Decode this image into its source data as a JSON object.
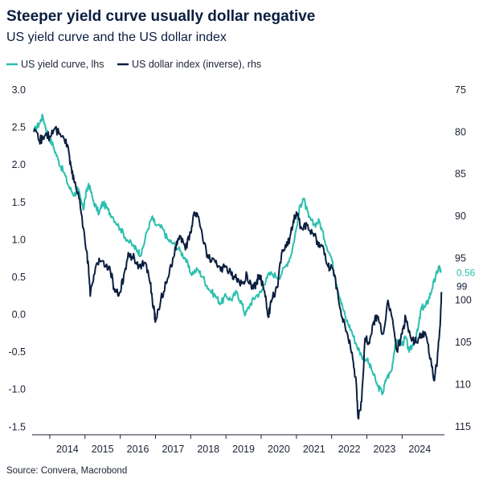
{
  "chart_data": {
    "type": "line",
    "title": "Steeper yield curve usually dollar negative",
    "subtitle": "US yield curve and the US dollar index",
    "source": "Source: Convera, Macrobond",
    "x_ticks": [
      "2014",
      "2015",
      "2016",
      "2017",
      "2018",
      "2019",
      "2020",
      "2021",
      "2022",
      "2023",
      "2024"
    ],
    "xlim": [
      2013.5,
      2025.2
    ],
    "grid": false,
    "legend_position": "top-left",
    "axes": {
      "left": {
        "ylim": [
          -1.55,
          3.0
        ],
        "ticks": [
          "3.0",
          "2.5",
          "2.0",
          "1.5",
          "1.0",
          "0.5",
          "0.0",
          "-0.5",
          "-1.0",
          "-1.5"
        ]
      },
      "right": {
        "inverted": true,
        "ylim": [
          75,
          115.5
        ],
        "ticks": [
          "75",
          "80",
          "85",
          "90",
          "95",
          "100",
          "105",
          "110",
          "115"
        ]
      }
    },
    "series": [
      {
        "name": "US yield curve, lhs",
        "axis": "left",
        "color": "#2bbfae",
        "end_label": "0.56",
        "points": [
          [
            2013.55,
            2.45
          ],
          [
            2013.7,
            2.55
          ],
          [
            2013.8,
            2.65
          ],
          [
            2013.95,
            2.4
          ],
          [
            2014.1,
            2.25
          ],
          [
            2014.25,
            2.05
          ],
          [
            2014.4,
            1.9
          ],
          [
            2014.55,
            1.7
          ],
          [
            2014.7,
            1.6
          ],
          [
            2014.8,
            1.68
          ],
          [
            2014.95,
            1.4
          ],
          [
            2015.0,
            1.55
          ],
          [
            2015.1,
            1.75
          ],
          [
            2015.25,
            1.5
          ],
          [
            2015.4,
            1.35
          ],
          [
            2015.5,
            1.5
          ],
          [
            2015.65,
            1.4
          ],
          [
            2015.8,
            1.3
          ],
          [
            2016.0,
            1.15
          ],
          [
            2016.2,
            1.0
          ],
          [
            2016.4,
            0.9
          ],
          [
            2016.5,
            0.85
          ],
          [
            2016.6,
            0.8
          ],
          [
            2016.75,
            1.1
          ],
          [
            2016.9,
            1.3
          ],
          [
            2017.0,
            1.2
          ],
          [
            2017.2,
            1.15
          ],
          [
            2017.35,
            1.0
          ],
          [
            2017.5,
            0.95
          ],
          [
            2017.7,
            0.85
          ],
          [
            2017.85,
            0.75
          ],
          [
            2018.0,
            0.55
          ],
          [
            2018.2,
            0.6
          ],
          [
            2018.35,
            0.5
          ],
          [
            2018.5,
            0.35
          ],
          [
            2018.7,
            0.25
          ],
          [
            2018.85,
            0.15
          ],
          [
            2019.0,
            0.25
          ],
          [
            2019.15,
            0.2
          ],
          [
            2019.3,
            0.3
          ],
          [
            2019.45,
            0.15
          ],
          [
            2019.55,
            0.0
          ],
          [
            2019.7,
            0.15
          ],
          [
            2019.85,
            0.25
          ],
          [
            2020.0,
            0.3
          ],
          [
            2020.15,
            0.5
          ],
          [
            2020.3,
            0.55
          ],
          [
            2020.5,
            0.5
          ],
          [
            2020.7,
            0.65
          ],
          [
            2020.85,
            0.8
          ],
          [
            2021.0,
            1.15
          ],
          [
            2021.1,
            1.45
          ],
          [
            2021.2,
            1.55
          ],
          [
            2021.35,
            1.3
          ],
          [
            2021.5,
            1.2
          ],
          [
            2021.65,
            1.25
          ],
          [
            2021.8,
            1.0
          ],
          [
            2022.0,
            0.75
          ],
          [
            2022.1,
            0.5
          ],
          [
            2022.25,
            0.2
          ],
          [
            2022.4,
            -0.05
          ],
          [
            2022.55,
            -0.2
          ],
          [
            2022.7,
            -0.4
          ],
          [
            2022.85,
            -0.55
          ],
          [
            2023.0,
            -0.6
          ],
          [
            2023.15,
            -0.75
          ],
          [
            2023.3,
            -0.95
          ],
          [
            2023.45,
            -1.05
          ],
          [
            2023.55,
            -0.85
          ],
          [
            2023.7,
            -0.75
          ],
          [
            2023.8,
            -0.4
          ],
          [
            2023.9,
            -0.35
          ],
          [
            2024.0,
            -0.4
          ],
          [
            2024.1,
            -0.3
          ],
          [
            2024.2,
            -0.5
          ],
          [
            2024.35,
            -0.35
          ],
          [
            2024.45,
            -0.2
          ],
          [
            2024.55,
            0.1
          ],
          [
            2024.65,
            0.1
          ],
          [
            2024.75,
            0.2
          ],
          [
            2024.85,
            0.35
          ],
          [
            2024.95,
            0.5
          ],
          [
            2025.05,
            0.65
          ],
          [
            2025.1,
            0.56
          ]
        ]
      },
      {
        "name": "US dollar index (inverse), rhs",
        "axis": "right",
        "color": "#0b1e3f",
        "end_label": "99",
        "points": [
          [
            2013.55,
            80
          ],
          [
            2013.7,
            81
          ],
          [
            2013.85,
            80.5
          ],
          [
            2014.0,
            80.5
          ],
          [
            2014.15,
            79.5
          ],
          [
            2014.35,
            80.5
          ],
          [
            2014.5,
            81.5
          ],
          [
            2014.6,
            84
          ],
          [
            2014.7,
            86
          ],
          [
            2014.85,
            88
          ],
          [
            2015.0,
            93
          ],
          [
            2015.1,
            96
          ],
          [
            2015.15,
            99.5
          ],
          [
            2015.25,
            97
          ],
          [
            2015.4,
            95
          ],
          [
            2015.55,
            96
          ],
          [
            2015.7,
            96
          ],
          [
            2015.85,
            99
          ],
          [
            2016.0,
            99
          ],
          [
            2016.1,
            97
          ],
          [
            2016.25,
            94.5
          ],
          [
            2016.4,
            95
          ],
          [
            2016.55,
            96
          ],
          [
            2016.7,
            95.5
          ],
          [
            2016.85,
            98
          ],
          [
            2016.95,
            101
          ],
          [
            2017.0,
            102.5
          ],
          [
            2017.15,
            100
          ],
          [
            2017.3,
            98
          ],
          [
            2017.45,
            96
          ],
          [
            2017.6,
            93
          ],
          [
            2017.7,
            92.5
          ],
          [
            2017.85,
            94
          ],
          [
            2018.0,
            92
          ],
          [
            2018.1,
            89.5
          ],
          [
            2018.2,
            90
          ],
          [
            2018.35,
            93
          ],
          [
            2018.5,
            95
          ],
          [
            2018.7,
            95.5
          ],
          [
            2018.85,
            96.5
          ],
          [
            2019.0,
            96
          ],
          [
            2019.15,
            97
          ],
          [
            2019.3,
            97.5
          ],
          [
            2019.45,
            98
          ],
          [
            2019.6,
            97
          ],
          [
            2019.75,
            98.5
          ],
          [
            2019.85,
            98
          ],
          [
            2019.95,
            97
          ],
          [
            2020.1,
            99
          ],
          [
            2020.2,
            102
          ],
          [
            2020.3,
            100
          ],
          [
            2020.45,
            98.5
          ],
          [
            2020.6,
            94
          ],
          [
            2020.75,
            93.5
          ],
          [
            2020.9,
            91
          ],
          [
            2021.0,
            89.5
          ],
          [
            2021.15,
            91.5
          ],
          [
            2021.3,
            91
          ],
          [
            2021.45,
            92
          ],
          [
            2021.6,
            93
          ],
          [
            2021.75,
            93.5
          ],
          [
            2021.9,
            96
          ],
          [
            2022.0,
            96
          ],
          [
            2022.15,
            98.5
          ],
          [
            2022.3,
            102
          ],
          [
            2022.45,
            104
          ],
          [
            2022.6,
            107
          ],
          [
            2022.7,
            110
          ],
          [
            2022.75,
            114
          ],
          [
            2022.85,
            112
          ],
          [
            2022.95,
            104.5
          ],
          [
            2023.05,
            105
          ],
          [
            2023.2,
            102.5
          ],
          [
            2023.3,
            102
          ],
          [
            2023.45,
            104
          ],
          [
            2023.6,
            100
          ],
          [
            2023.75,
            103
          ],
          [
            2023.85,
            106
          ],
          [
            2024.0,
            104
          ],
          [
            2024.1,
            102
          ],
          [
            2024.25,
            104.5
          ],
          [
            2024.4,
            105
          ],
          [
            2024.55,
            104
          ],
          [
            2024.7,
            104.5
          ],
          [
            2024.8,
            107
          ],
          [
            2024.9,
            109.5
          ],
          [
            2025.0,
            107
          ],
          [
            2025.08,
            103
          ],
          [
            2025.12,
            99
          ]
        ]
      }
    ]
  }
}
